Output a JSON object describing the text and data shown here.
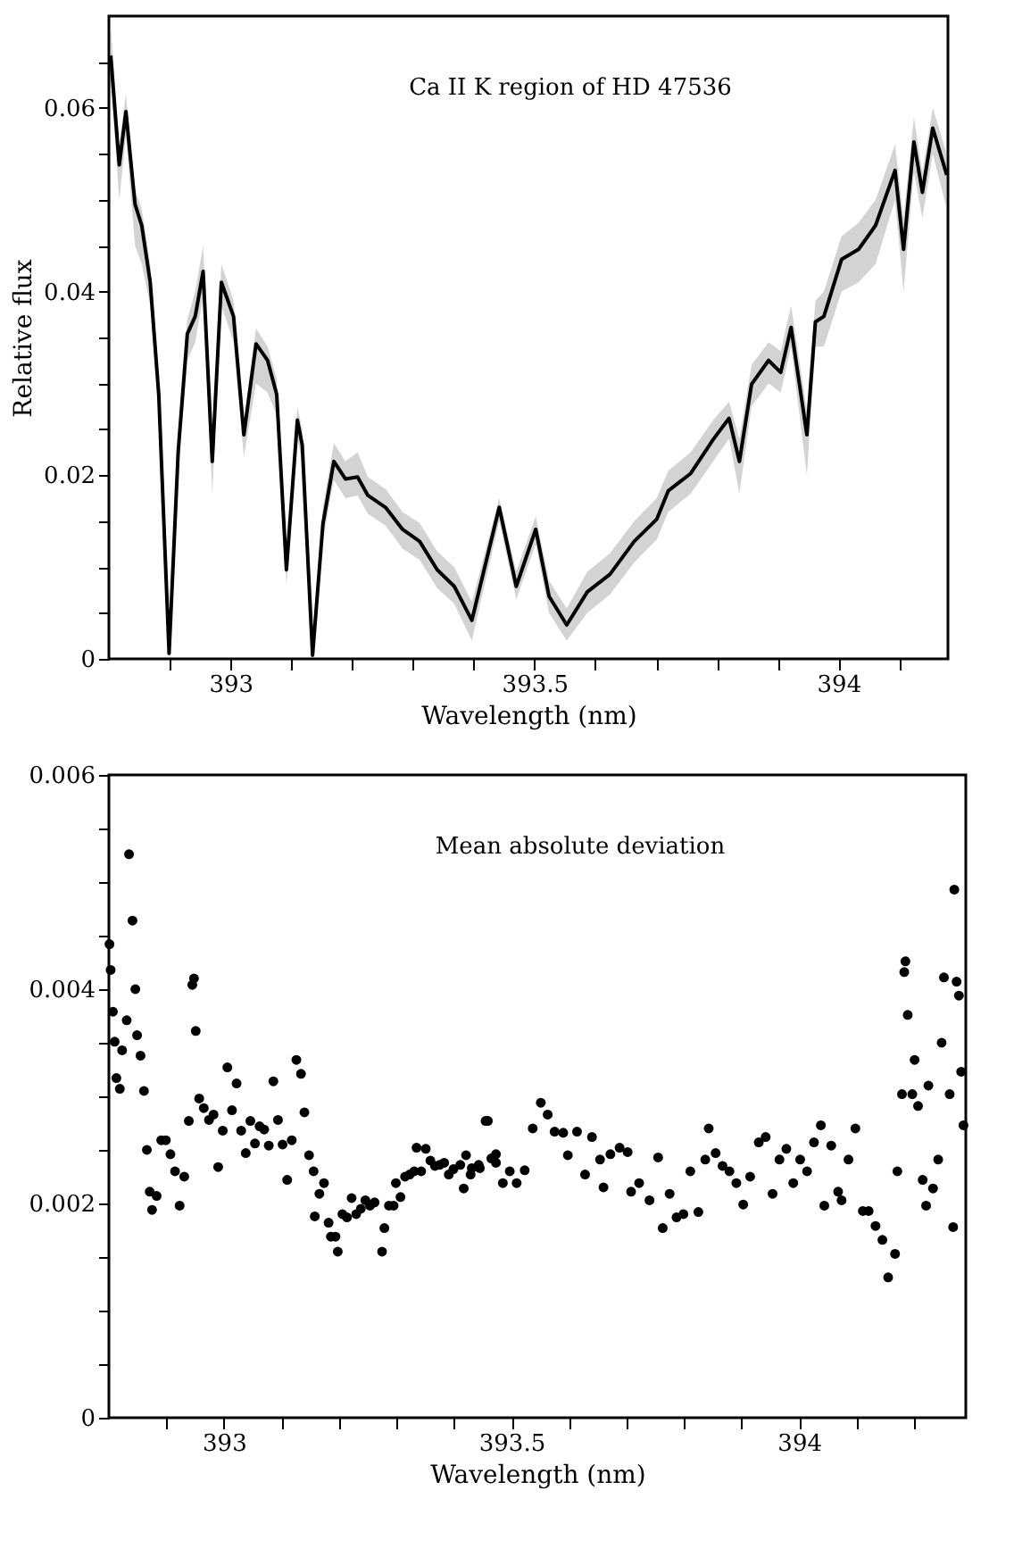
{
  "chart_data": [
    {
      "type": "line",
      "annotations": [
        "Ca II K region of HD 47536"
      ],
      "xlabel": "Wavelength (nm)",
      "ylabel": "Relative flux",
      "x": [
        392.803,
        392.817,
        392.828,
        392.843,
        392.854,
        392.868,
        392.882,
        392.899,
        392.914,
        392.929,
        392.942,
        392.955,
        392.97,
        392.985,
        393.005,
        393.022,
        393.042,
        393.061,
        393.076,
        393.092,
        393.11,
        393.118,
        393.135,
        393.152,
        393.17,
        393.189,
        393.209,
        393.226,
        393.255,
        393.283,
        393.311,
        393.34,
        393.368,
        393.397,
        393.442,
        393.47,
        393.502,
        393.524,
        393.553,
        393.587,
        393.624,
        393.664,
        393.701,
        393.72,
        393.757,
        393.794,
        393.82,
        393.837,
        393.857,
        393.885,
        393.905,
        393.922,
        393.948,
        393.962,
        393.976,
        394.005,
        394.033,
        394.061,
        394.093,
        394.107,
        394.124,
        394.138,
        394.155,
        394.178
      ],
      "series": [
        {
          "color": "#000000",
          "values": [
            0.0657,
            0.0538,
            0.0596,
            0.0495,
            0.0472,
            0.041,
            0.0288,
            0.0006,
            0.0226,
            0.0354,
            0.0373,
            0.0422,
            0.0215,
            0.041,
            0.0373,
            0.0244,
            0.0343,
            0.0325,
            0.0288,
            0.0097,
            0.026,
            0.0233,
            0.0004,
            0.0147,
            0.0215,
            0.0196,
            0.0198,
            0.0178,
            0.0165,
            0.0141,
            0.0128,
            0.0097,
            0.0079,
            0.0042,
            0.0165,
            0.0079,
            0.0141,
            0.0068,
            0.0037,
            0.0073,
            0.0092,
            0.0128,
            0.0152,
            0.0183,
            0.0202,
            0.0239,
            0.0262,
            0.0215,
            0.0299,
            0.0325,
            0.0312,
            0.0361,
            0.0244,
            0.0367,
            0.0373,
            0.0435,
            0.0446,
            0.0472,
            0.0532,
            0.0446,
            0.0563,
            0.0508,
            0.0578,
            0.0527
          ],
          "lower": [
            0.063,
            0.05,
            0.057,
            0.045,
            0.043,
            0.0385,
            0.0265,
            0.0,
            0.0205,
            0.0325,
            0.0345,
            0.0395,
            0.018,
            0.0385,
            0.0345,
            0.022,
            0.03,
            0.029,
            0.0265,
            0.008,
            0.024,
            0.0215,
            0.0,
            0.013,
            0.0195,
            0.0175,
            0.0178,
            0.0158,
            0.0145,
            0.012,
            0.0108,
            0.0077,
            0.006,
            0.002,
            0.015,
            0.0065,
            0.0125,
            0.005,
            0.002,
            0.005,
            0.007,
            0.0105,
            0.013,
            0.016,
            0.018,
            0.0215,
            0.024,
            0.018,
            0.0275,
            0.03,
            0.029,
            0.034,
            0.02,
            0.034,
            0.034,
            0.04,
            0.041,
            0.043,
            0.05,
            0.04,
            0.053,
            0.048,
            0.055,
            0.049
          ],
          "upper": [
            0.069,
            0.056,
            0.0615,
            0.051,
            0.049,
            0.043,
            0.0305,
            0.002,
            0.0245,
            0.037,
            0.04,
            0.045,
            0.0235,
            0.043,
            0.039,
            0.026,
            0.036,
            0.034,
            0.0305,
            0.0115,
            0.0275,
            0.025,
            0.002,
            0.0165,
            0.0235,
            0.0215,
            0.0225,
            0.0198,
            0.0185,
            0.016,
            0.0148,
            0.0117,
            0.01,
            0.0062,
            0.0175,
            0.0095,
            0.0155,
            0.0085,
            0.0055,
            0.0095,
            0.0115,
            0.015,
            0.0175,
            0.0205,
            0.0225,
            0.026,
            0.028,
            0.024,
            0.032,
            0.0345,
            0.0335,
            0.0385,
            0.027,
            0.039,
            0.04,
            0.046,
            0.0475,
            0.05,
            0.056,
            0.048,
            0.059,
            0.053,
            0.06,
            0.055
          ]
        }
      ],
      "xlim": [
        392.8,
        394.18
      ],
      "ylim": [
        0,
        0.07
      ],
      "xticks": [
        {
          "value": 392.9,
          "label": null
        },
        393,
        {
          "value": 393.1,
          "label": null
        },
        {
          "value": 393.2,
          "label": null
        },
        {
          "value": 393.3,
          "label": null
        },
        {
          "value": 393.4,
          "label": null
        },
        393.5,
        {
          "value": 393.6,
          "label": null
        },
        {
          "value": 393.7,
          "label": null
        },
        {
          "value": 393.8,
          "label": null
        },
        {
          "value": 393.9,
          "label": null
        },
        394,
        {
          "value": 394.1,
          "label": null
        }
      ],
      "yticks": [
        0,
        {
          "value": 0.005,
          "label": null
        },
        {
          "value": 0.01,
          "label": null
        },
        {
          "value": 0.015,
          "label": null
        },
        0.02,
        {
          "value": 0.025,
          "label": null
        },
        {
          "value": 0.03,
          "label": null
        },
        {
          "value": 0.035,
          "label": null
        },
        0.04,
        {
          "value": 0.045,
          "label": null
        },
        {
          "value": 0.05,
          "label": null
        },
        {
          "value": 0.055,
          "label": null
        },
        0.06,
        {
          "value": 0.065,
          "label": null
        }
      ],
      "grid": false,
      "legend": false
    },
    {
      "type": "scatter",
      "annotations": [
        "Mean absolute deviation"
      ],
      "xlabel": "Wavelength (nm)",
      "marker": "circle",
      "x": [
        392.801,
        392.803,
        392.807,
        392.81,
        392.813,
        392.819,
        392.823,
        392.831,
        392.835,
        392.841,
        392.846,
        392.849,
        392.855,
        392.861,
        392.866,
        392.871,
        392.875,
        392.883,
        392.891,
        392.899,
        392.907,
        392.915,
        392.923,
        392.931,
        392.939,
        392.945,
        392.948,
        392.951,
        392.957,
        392.965,
        392.974,
        392.982,
        392.99,
        392.998,
        393.006,
        393.014,
        393.022,
        393.03,
        393.038,
        393.046,
        393.054,
        393.062,
        393.07,
        393.078,
        393.086,
        393.094,
        393.102,
        393.11,
        393.118,
        393.126,
        393.134,
        393.14,
        393.148,
        393.156,
        393.158,
        393.166,
        393.174,
        393.182,
        393.186,
        393.194,
        393.198,
        393.206,
        393.214,
        393.222,
        393.23,
        393.238,
        393.246,
        393.254,
        393.262,
        393.275,
        393.279,
        393.287,
        393.295,
        393.299,
        393.307,
        393.315,
        393.323,
        393.331,
        393.335,
        393.343,
        393.351,
        393.359,
        393.367,
        393.375,
        393.383,
        393.391,
        393.399,
        393.411,
        393.421,
        393.431,
        393.443,
        393.455,
        393.465,
        393.473,
        393.417,
        393.429,
        393.445,
        393.459,
        393.473,
        393.485,
        393.497,
        393.509,
        393.523,
        393.537,
        393.551,
        393.563,
        393.575,
        393.59,
        393.598,
        393.614,
        393.628,
        393.64,
        393.654,
        393.66,
        393.672,
        393.688,
        393.702,
        393.708,
        393.722,
        393.74,
        393.755,
        393.763,
        393.775,
        393.787,
        393.799,
        393.811,
        393.825,
        393.837,
        393.843,
        393.855,
        393.867,
        393.879,
        393.891,
        393.903,
        393.915,
        393.93,
        393.942,
        393.954,
        393.966,
        393.978,
        393.99,
        394.002,
        394.014,
        394.026,
        394.038,
        394.044,
        394.056,
        394.068,
        394.074,
        394.086,
        394.098,
        394.111,
        394.121,
        394.133,
        394.145,
        394.155,
        394.167,
        394.171,
        394.179,
        394.183,
        394.185,
        394.189,
        394.197,
        394.201,
        394.207,
        394.215,
        394.221,
        394.225,
        394.233,
        394.242,
        394.248,
        394.252,
        394.262,
        394.268,
        394.27,
        394.274,
        394.278,
        394.282,
        394.286
      ],
      "series": [
        {
          "color": "#000000",
          "values": [
            0.00442,
            0.00418,
            0.00379,
            0.00351,
            0.00317,
            0.00307,
            0.00343,
            0.00371,
            0.00526,
            0.00464,
            0.004,
            0.00357,
            0.00338,
            0.00305,
            0.0025,
            0.00211,
            0.00194,
            0.00207,
            0.00259,
            0.00259,
            0.00246,
            0.0023,
            0.00198,
            0.00225,
            0.00277,
            0.00404,
            0.0041,
            0.00361,
            0.00298,
            0.00289,
            0.00278,
            0.00283,
            0.00234,
            0.00268,
            0.00327,
            0.00287,
            0.00312,
            0.00268,
            0.00247,
            0.00277,
            0.00256,
            0.00272,
            0.00269,
            0.00254,
            0.00314,
            0.00278,
            0.00255,
            0.00222,
            0.00259,
            0.00334,
            0.00321,
            0.00285,
            0.00245,
            0.0023,
            0.00188,
            0.00209,
            0.00219,
            0.00182,
            0.00169,
            0.00169,
            0.00155,
            0.0019,
            0.00187,
            0.00205,
            0.0019,
            0.00195,
            0.00203,
            0.00198,
            0.00201,
            0.00155,
            0.00177,
            0.00198,
            0.00198,
            0.00219,
            0.00206,
            0.00225,
            0.00227,
            0.0023,
            0.00252,
            0.0023,
            0.00251,
            0.0024,
            0.00235,
            0.00236,
            0.00238,
            0.00227,
            0.00232,
            0.00236,
            0.00245,
            0.00233,
            0.00236,
            0.00277,
            0.00242,
            0.00238,
            0.00214,
            0.00227,
            0.00233,
            0.00277,
            0.00246,
            0.00219,
            0.0023,
            0.00219,
            0.00231,
            0.0027,
            0.00294,
            0.00283,
            0.00267,
            0.00266,
            0.00245,
            0.00267,
            0.00227,
            0.00262,
            0.00241,
            0.00215,
            0.00246,
            0.00252,
            0.00248,
            0.00211,
            0.00219,
            0.00203,
            0.00243,
            0.00177,
            0.00209,
            0.00187,
            0.0019,
            0.0023,
            0.00192,
            0.00241,
            0.0027,
            0.00247,
            0.00235,
            0.0023,
            0.00219,
            0.00199,
            0.00225,
            0.00257,
            0.00262,
            0.00209,
            0.00241,
            0.00251,
            0.00219,
            0.00241,
            0.0023,
            0.00257,
            0.00273,
            0.00198,
            0.00254,
            0.00211,
            0.00203,
            0.00241,
            0.0027,
            0.00193,
            0.00193,
            0.00179,
            0.00166,
            0.00131,
            0.00153,
            0.0023,
            0.00302,
            0.00416,
            0.00426,
            0.00376,
            0.00302,
            0.00334,
            0.00291,
            0.00222,
            0.00198,
            0.0031,
            0.00214,
            0.00241,
            0.0035,
            0.00411,
            0.00302,
            0.00178,
            0.00493,
            0.00407,
            0.00394,
            0.00323,
            0.00273
          ]
        }
      ],
      "xlim": [
        392.8,
        394.29
      ],
      "ylim": [
        0,
        0.006
      ],
      "xticks": [
        {
          "value": 392.9,
          "label": null
        },
        393,
        {
          "value": 393.1,
          "label": null
        },
        {
          "value": 393.2,
          "label": null
        },
        {
          "value": 393.3,
          "label": null
        },
        {
          "value": 393.4,
          "label": null
        },
        393.5,
        {
          "value": 393.6,
          "label": null
        },
        {
          "value": 393.7,
          "label": null
        },
        {
          "value": 393.8,
          "label": null
        },
        {
          "value": 393.9,
          "label": null
        },
        394,
        {
          "value": 394.1,
          "label": null
        },
        {
          "value": 394.2,
          "label": null
        }
      ],
      "yticks": [
        0,
        {
          "value": 0.0005,
          "label": null
        },
        {
          "value": 0.001,
          "label": null
        },
        {
          "value": 0.0015,
          "label": null
        },
        0.002,
        {
          "value": 0.0025,
          "label": null
        },
        {
          "value": 0.003,
          "label": null
        },
        {
          "value": 0.0035,
          "label": null
        },
        0.004,
        {
          "value": 0.0045,
          "label": null
        },
        {
          "value": 0.005,
          "label": null
        },
        {
          "value": 0.0055,
          "label": null
        },
        0.006
      ],
      "grid": false,
      "legend": false
    }
  ]
}
